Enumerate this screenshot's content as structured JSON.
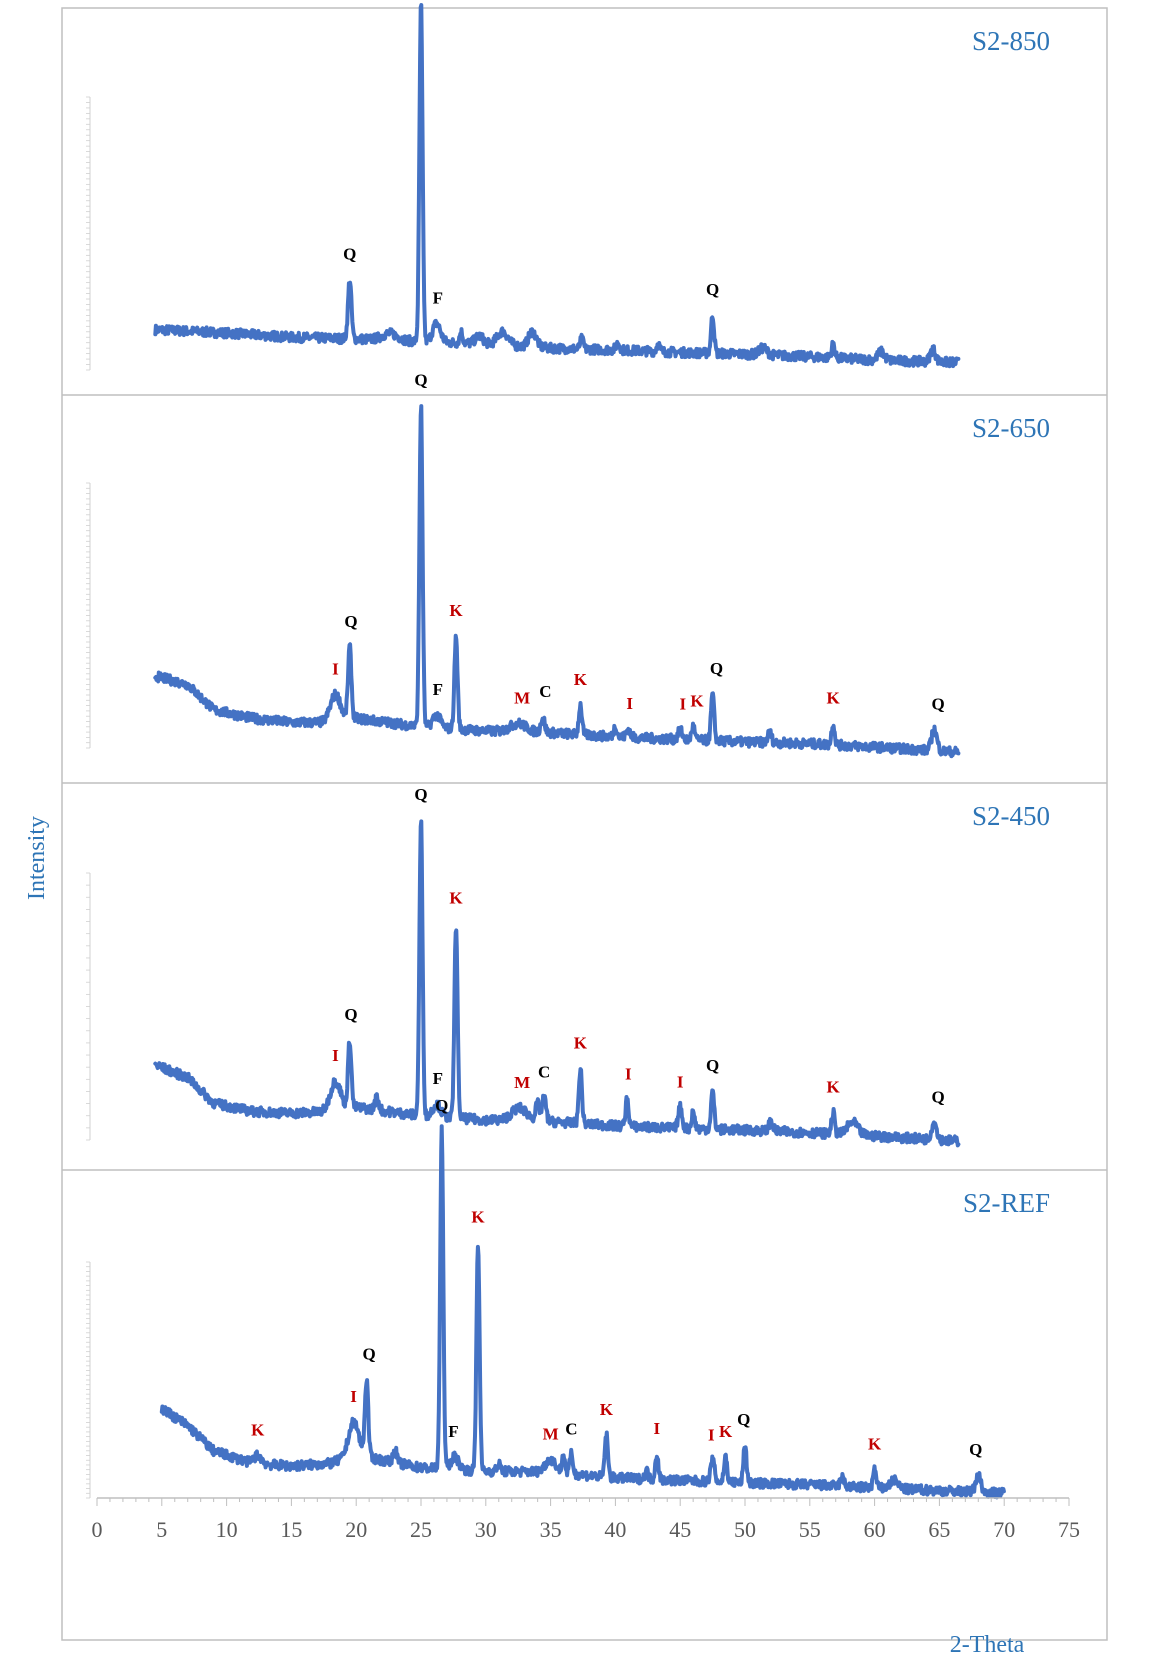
{
  "colors": {
    "series": "#4472c4",
    "phase_black": "#000000",
    "phase_red": "#c00000",
    "title": "#2e75b6",
    "border": "#bfbfbf",
    "axis": "#bfbfbf",
    "tick_label": "#595959"
  },
  "chart_data": {
    "type": "line",
    "xlabel": "2-Theta",
    "ylabel": "Intensity",
    "x_ticks": [
      0,
      5,
      10,
      15,
      20,
      25,
      30,
      35,
      40,
      45,
      50,
      55,
      60,
      65,
      70,
      75
    ],
    "xlim": [
      0,
      75
    ],
    "grid": false,
    "panels": [
      {
        "title": "S2-850",
        "x_range": [
          4.5,
          66.5
        ],
        "baseline": [
          [
            4.5,
            6.2
          ],
          [
            10,
            5.8
          ],
          [
            15,
            5.3
          ],
          [
            20,
            5.1
          ],
          [
            25,
            4.8
          ],
          [
            30,
            4.5
          ],
          [
            35,
            4.0
          ],
          [
            40,
            3.8
          ],
          [
            45,
            3.5
          ],
          [
            50,
            3.3
          ],
          [
            55,
            3.0
          ],
          [
            60,
            2.6
          ],
          [
            66.5,
            2.3
          ]
        ],
        "peaks": [
          {
            "x": 19.5,
            "h": 7,
            "w": 0.13
          },
          {
            "x": 22.6,
            "h": 0.8,
            "w": 0.6
          },
          {
            "x": 25.0,
            "h": 40,
            "w": 0.12
          },
          {
            "x": 26.2,
            "h": 2.2,
            "w": 0.3
          },
          {
            "x": 28.1,
            "h": 1.3,
            "w": 0.12
          },
          {
            "x": 29.5,
            "h": 0.9,
            "w": 0.3
          },
          {
            "x": 31.3,
            "h": 1.6,
            "w": 0.4
          },
          {
            "x": 33.6,
            "h": 1.8,
            "w": 0.3
          },
          {
            "x": 37.4,
            "h": 1.2,
            "w": 0.12
          },
          {
            "x": 40.2,
            "h": 0.8,
            "w": 0.15
          },
          {
            "x": 43.3,
            "h": 0.9,
            "w": 0.12
          },
          {
            "x": 47.5,
            "h": 4.5,
            "w": 0.12
          },
          {
            "x": 51.4,
            "h": 0.8,
            "w": 0.3
          },
          {
            "x": 56.8,
            "h": 1.6,
            "w": 0.12
          },
          {
            "x": 60.5,
            "h": 1.0,
            "w": 0.25
          },
          {
            "x": 64.5,
            "h": 1.5,
            "w": 0.2
          }
        ],
        "labels": [
          {
            "text": "Q",
            "x": 19.5,
            "color": "black"
          },
          {
            "text": "Q",
            "x": 25.0,
            "color": "black"
          },
          {
            "text": "F",
            "x": 26.3,
            "color": "black"
          },
          {
            "text": "Q",
            "x": 47.5,
            "color": "black"
          }
        ]
      },
      {
        "title": "S2-650",
        "x_range": [
          4.5,
          66.5
        ],
        "baseline": [
          [
            4.5,
            11
          ],
          [
            7,
            10
          ],
          [
            9,
            7
          ],
          [
            12,
            6
          ],
          [
            15,
            5.5
          ],
          [
            18,
            5.5
          ],
          [
            20,
            6
          ],
          [
            25,
            5
          ],
          [
            30,
            4.5
          ],
          [
            35,
            4.3
          ],
          [
            40,
            3.8
          ],
          [
            45,
            3.5
          ],
          [
            50,
            3.2
          ],
          [
            55,
            3.0
          ],
          [
            60,
            2.6
          ],
          [
            66.5,
            2.0
          ]
        ],
        "peaks": [
          {
            "x": 18.4,
            "h": 3.2,
            "w": 0.4
          },
          {
            "x": 19.5,
            "h": 8.5,
            "w": 0.13
          },
          {
            "x": 25.0,
            "h": 38,
            "w": 0.12
          },
          {
            "x": 26.2,
            "h": 1.5,
            "w": 0.3
          },
          {
            "x": 27.7,
            "h": 11,
            "w": 0.12
          },
          {
            "x": 32.5,
            "h": 1.0,
            "w": 0.6
          },
          {
            "x": 34.4,
            "h": 1.8,
            "w": 0.15
          },
          {
            "x": 37.3,
            "h": 3.5,
            "w": 0.12
          },
          {
            "x": 40.0,
            "h": 1.3,
            "w": 0.12
          },
          {
            "x": 41.0,
            "h": 1.0,
            "w": 0.15
          },
          {
            "x": 45.0,
            "h": 1.2,
            "w": 0.15
          },
          {
            "x": 46.0,
            "h": 1.6,
            "w": 0.12
          },
          {
            "x": 47.5,
            "h": 5.5,
            "w": 0.12
          },
          {
            "x": 51.9,
            "h": 1.2,
            "w": 0.15
          },
          {
            "x": 56.8,
            "h": 2.5,
            "w": 0.12
          },
          {
            "x": 64.6,
            "h": 2.5,
            "w": 0.2
          }
        ],
        "labels": [
          {
            "text": "I",
            "x": 18.4,
            "color": "red"
          },
          {
            "text": "Q",
            "x": 19.6,
            "color": "black"
          },
          {
            "text": "Q",
            "x": 25.0,
            "color": "black"
          },
          {
            "text": "F",
            "x": 26.3,
            "color": "black"
          },
          {
            "text": "K",
            "x": 27.7,
            "color": "red"
          },
          {
            "text": "M",
            "x": 32.8,
            "color": "red"
          },
          {
            "text": "C",
            "x": 34.6,
            "color": "black"
          },
          {
            "text": "K",
            "x": 37.3,
            "color": "red"
          },
          {
            "text": "I",
            "x": 41.1,
            "color": "red"
          },
          {
            "text": "I",
            "x": 45.2,
            "color": "red"
          },
          {
            "text": "K",
            "x": 46.3,
            "color": "red"
          },
          {
            "text": "Q",
            "x": 47.8,
            "color": "black"
          },
          {
            "text": "K",
            "x": 56.8,
            "color": "red"
          },
          {
            "text": "Q",
            "x": 64.9,
            "color": "black"
          }
        ]
      },
      {
        "title": "S2-450",
        "x_range": [
          4.5,
          66.5
        ],
        "baseline": [
          [
            4.5,
            11
          ],
          [
            7,
            9.5
          ],
          [
            9,
            6.5
          ],
          [
            12,
            5.5
          ],
          [
            15,
            5.3
          ],
          [
            18,
            5.5
          ],
          [
            20,
            6
          ],
          [
            25,
            5
          ],
          [
            30,
            4.5
          ],
          [
            35,
            4.3
          ],
          [
            40,
            3.8
          ],
          [
            45,
            3.5
          ],
          [
            50,
            3.3
          ],
          [
            55,
            3.0
          ],
          [
            60,
            2.6
          ],
          [
            66.5,
            2.0
          ]
        ],
        "peaks": [
          {
            "x": 18.4,
            "h": 3.5,
            "w": 0.4
          },
          {
            "x": 19.5,
            "h": 8,
            "w": 0.13
          },
          {
            "x": 21.6,
            "h": 1.5,
            "w": 0.15
          },
          {
            "x": 25.0,
            "h": 35,
            "w": 0.12
          },
          {
            "x": 26.2,
            "h": 1.5,
            "w": 0.3
          },
          {
            "x": 27.7,
            "h": 23,
            "w": 0.12
          },
          {
            "x": 32.6,
            "h": 1.5,
            "w": 0.6
          },
          {
            "x": 34.0,
            "h": 2.0,
            "w": 0.15
          },
          {
            "x": 34.5,
            "h": 2.8,
            "w": 0.15
          },
          {
            "x": 37.3,
            "h": 6.5,
            "w": 0.12
          },
          {
            "x": 40.9,
            "h": 3.2,
            "w": 0.12
          },
          {
            "x": 45.0,
            "h": 2.5,
            "w": 0.15
          },
          {
            "x": 46.0,
            "h": 2.0,
            "w": 0.12
          },
          {
            "x": 47.5,
            "h": 4.5,
            "w": 0.12
          },
          {
            "x": 52.0,
            "h": 1.2,
            "w": 0.15
          },
          {
            "x": 56.8,
            "h": 2.5,
            "w": 0.12
          },
          {
            "x": 58.3,
            "h": 1.5,
            "w": 0.4
          },
          {
            "x": 64.6,
            "h": 2.0,
            "w": 0.2
          }
        ],
        "labels": [
          {
            "text": "I",
            "x": 18.4,
            "color": "red"
          },
          {
            "text": "Q",
            "x": 19.6,
            "color": "black"
          },
          {
            "text": "Q",
            "x": 25.0,
            "color": "black"
          },
          {
            "text": "F",
            "x": 26.3,
            "color": "black"
          },
          {
            "text": "K",
            "x": 27.7,
            "color": "red"
          },
          {
            "text": "M",
            "x": 32.8,
            "color": "red"
          },
          {
            "text": "C",
            "x": 34.5,
            "color": "black"
          },
          {
            "text": "K",
            "x": 37.3,
            "color": "red"
          },
          {
            "text": "I",
            "x": 41.0,
            "color": "red"
          },
          {
            "text": "I",
            "x": 45.0,
            "color": "red"
          },
          {
            "text": "Q",
            "x": 47.5,
            "color": "black"
          },
          {
            "text": "K",
            "x": 56.8,
            "color": "red"
          },
          {
            "text": "Q",
            "x": 64.9,
            "color": "black"
          }
        ]
      },
      {
        "title": "S2-REF",
        "x_range": [
          5,
          70
        ],
        "baseline": [
          [
            5,
            12
          ],
          [
            7,
            10
          ],
          [
            9,
            7
          ],
          [
            12,
            5.5
          ],
          [
            15,
            5.2
          ],
          [
            18,
            5.5
          ],
          [
            20,
            6.5
          ],
          [
            25,
            5
          ],
          [
            30,
            4.6
          ],
          [
            35,
            4.5
          ],
          [
            40,
            3.8
          ],
          [
            45,
            3.5
          ],
          [
            50,
            3.2
          ],
          [
            55,
            3.0
          ],
          [
            60,
            2.6
          ],
          [
            65,
            2.3
          ],
          [
            70,
            2.0
          ]
        ],
        "peaks": [
          {
            "x": 12.4,
            "h": 1.0,
            "w": 0.3
          },
          {
            "x": 19.8,
            "h": 4.0,
            "w": 0.4
          },
          {
            "x": 20.8,
            "h": 9,
            "w": 0.13
          },
          {
            "x": 23.0,
            "h": 1.5,
            "w": 0.15
          },
          {
            "x": 26.6,
            "h": 40,
            "w": 0.12
          },
          {
            "x": 27.6,
            "h": 1.5,
            "w": 0.3
          },
          {
            "x": 29.4,
            "h": 27,
            "w": 0.12
          },
          {
            "x": 31.0,
            "h": 0.8,
            "w": 0.15
          },
          {
            "x": 35.0,
            "h": 1.5,
            "w": 0.4
          },
          {
            "x": 36.0,
            "h": 2.0,
            "w": 0.12
          },
          {
            "x": 36.6,
            "h": 2.3,
            "w": 0.12
          },
          {
            "x": 39.3,
            "h": 5.0,
            "w": 0.12
          },
          {
            "x": 42.4,
            "h": 1.0,
            "w": 0.12
          },
          {
            "x": 43.2,
            "h": 3.0,
            "w": 0.12
          },
          {
            "x": 47.5,
            "h": 2.5,
            "w": 0.15
          },
          {
            "x": 48.5,
            "h": 3.0,
            "w": 0.12
          },
          {
            "x": 50.0,
            "h": 4.5,
            "w": 0.12
          },
          {
            "x": 57.5,
            "h": 1.0,
            "w": 0.15
          },
          {
            "x": 60.0,
            "h": 2.2,
            "w": 0.12
          },
          {
            "x": 61.5,
            "h": 1.0,
            "w": 0.3
          },
          {
            "x": 68.0,
            "h": 2.0,
            "w": 0.2
          }
        ],
        "labels": [
          {
            "text": "K",
            "x": 12.4,
            "color": "red"
          },
          {
            "text": "I",
            "x": 19.8,
            "color": "red"
          },
          {
            "text": "Q",
            "x": 21.0,
            "color": "black"
          },
          {
            "text": "Q",
            "x": 26.6,
            "color": "black"
          },
          {
            "text": "F",
            "x": 27.5,
            "color": "black"
          },
          {
            "text": "K",
            "x": 29.4,
            "color": "red"
          },
          {
            "text": "M",
            "x": 35.0,
            "color": "red"
          },
          {
            "text": "C",
            "x": 36.6,
            "color": "black"
          },
          {
            "text": "K",
            "x": 39.3,
            "color": "red"
          },
          {
            "text": "I",
            "x": 43.2,
            "color": "red"
          },
          {
            "text": "I",
            "x": 47.4,
            "color": "red"
          },
          {
            "text": "K",
            "x": 48.5,
            "color": "red"
          },
          {
            "text": "Q",
            "x": 49.9,
            "color": "black"
          },
          {
            "text": "K",
            "x": 60.0,
            "color": "red"
          },
          {
            "text": "Q",
            "x": 67.8,
            "color": "black"
          }
        ]
      }
    ]
  }
}
